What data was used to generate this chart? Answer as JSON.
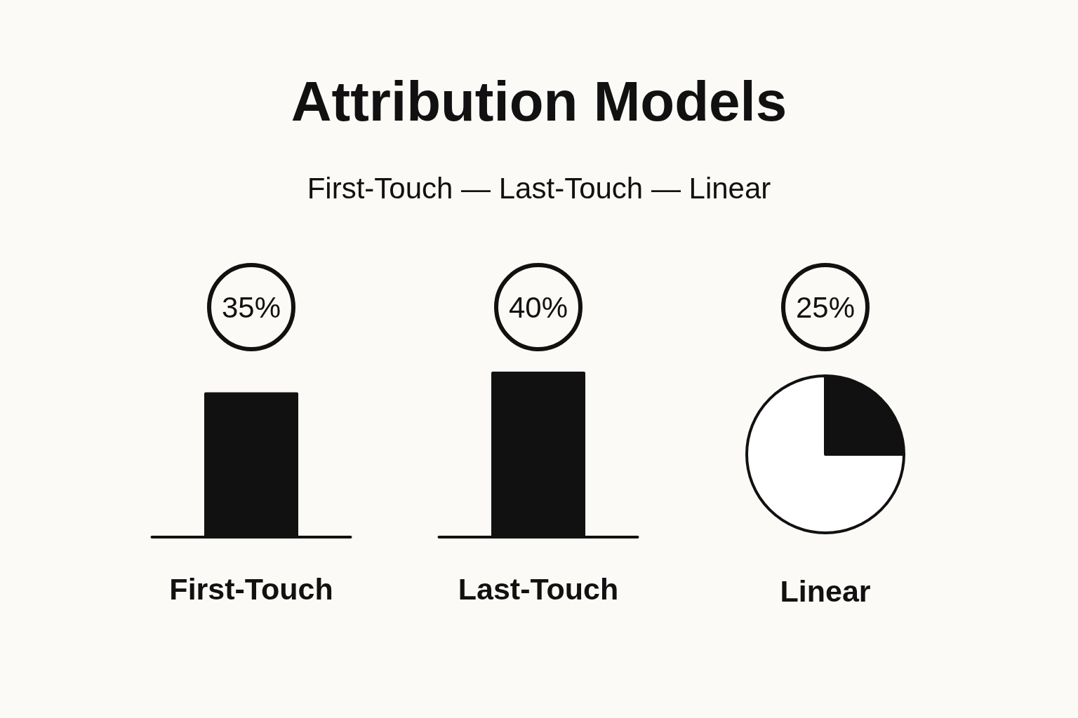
{
  "chart_data": [
    {
      "type": "bar",
      "title": "Attribution Models",
      "subtitle": "First-Touch — Last-Touch — Linear",
      "categories": [
        "First-Touch",
        "Last-Touch"
      ],
      "values": [
        35,
        40
      ],
      "value_labels": [
        "35%",
        "40%"
      ],
      "color": "#111111"
    },
    {
      "type": "pie",
      "title": "Linear",
      "categories": [
        null,
        null
      ],
      "values": [
        25,
        75
      ],
      "colors": [
        "#111111",
        "#ffffff"
      ],
      "value_labels": [
        "25%",
        null
      ]
    }
  ]
}
